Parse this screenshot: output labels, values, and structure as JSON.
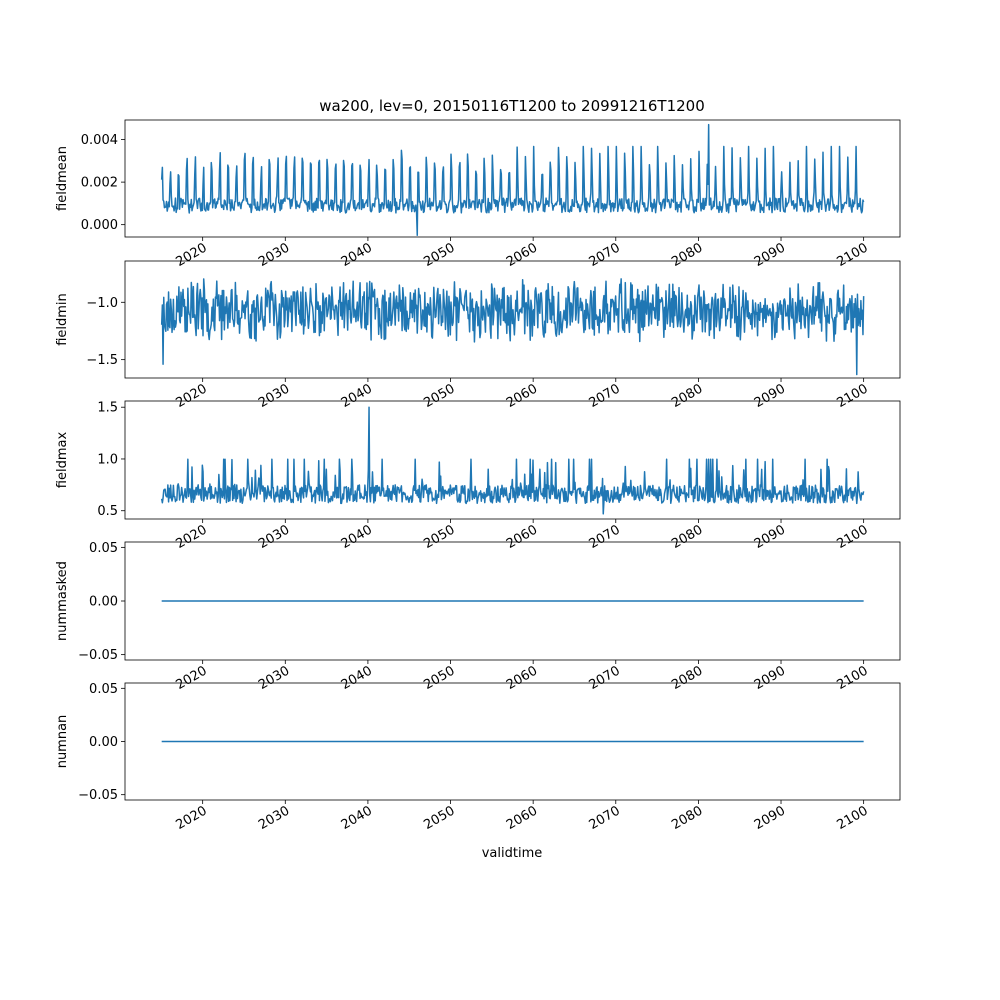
{
  "figure": {
    "title": "wa200, lev=0, 20150116T1200 to 20991216T1200",
    "xlabel": "validtime",
    "line_color": "#1f77b4"
  },
  "chart_data": [
    {
      "type": "line",
      "ylabel": "fieldmean",
      "xlim": [
        2010.6,
        2104.4
      ],
      "ylim": [
        -0.00058,
        0.00492
      ],
      "yticks": [
        0.0,
        0.002,
        0.004
      ],
      "ytick_labels": [
        "0.000",
        "0.002",
        "0.004"
      ],
      "xticks": [
        2020,
        2030,
        2040,
        2050,
        2060,
        2070,
        2080,
        2090,
        2100
      ],
      "xtick_labels": [
        "2020",
        "2030",
        "2040",
        "2050",
        "2060",
        "2070",
        "2080",
        "2090",
        "2100"
      ],
      "x_start": 2015.04,
      "x_end": 2100.0,
      "n_points": 1020,
      "seed": 11,
      "values_summary": {
        "typical_low": 0.0004,
        "typical_high": 0.0035,
        "min": -0.0005,
        "max": 0.0047
      },
      "series": [
        {
          "pattern": "seasonal_peaks",
          "base": 0.0009,
          "peak": 0.0026,
          "noise": 0.00035,
          "spike_x": 2081.2,
          "spike_value": 0.0047,
          "dip_x": 2046.0,
          "dip_value": -0.0005
        }
      ]
    },
    {
      "type": "line",
      "ylabel": "fieldmin",
      "xlim": [
        2010.6,
        2104.4
      ],
      "ylim": [
        -1.66,
        -0.64
      ],
      "yticks": [
        -1.5,
        -1.0
      ],
      "ytick_labels": [
        "−1.5",
        "−1.0"
      ],
      "xticks": [
        2020,
        2030,
        2040,
        2050,
        2060,
        2070,
        2080,
        2090,
        2100
      ],
      "xtick_labels": [
        "2020",
        "2030",
        "2040",
        "2050",
        "2060",
        "2070",
        "2080",
        "2090",
        "2100"
      ],
      "x_start": 2015.04,
      "x_end": 2100.0,
      "n_points": 1020,
      "seed": 23,
      "values_summary": {
        "typical_low": -1.35,
        "typical_high": -0.8,
        "min": -1.63,
        "max": -0.72
      },
      "series": [
        {
          "pattern": "noise",
          "base": -1.07,
          "noise": 0.2,
          "spike_x": 2099.2,
          "spike_value": -1.63,
          "dip_x": 2015.2,
          "dip_value": -1.54
        }
      ]
    },
    {
      "type": "line",
      "ylabel": "fieldmax",
      "xlim": [
        2010.6,
        2104.4
      ],
      "ylim": [
        0.42,
        1.56
      ],
      "yticks": [
        0.5,
        1.0,
        1.5
      ],
      "ytick_labels": [
        "0.5",
        "1.0",
        "1.5"
      ],
      "xticks": [
        2020,
        2030,
        2040,
        2050,
        2060,
        2070,
        2080,
        2090,
        2100
      ],
      "xtick_labels": [
        "2020",
        "2030",
        "2040",
        "2050",
        "2060",
        "2070",
        "2080",
        "2090",
        "2100"
      ],
      "x_start": 2015.04,
      "x_end": 2100.0,
      "n_points": 1020,
      "seed": 37,
      "values_summary": {
        "typical_low": 0.55,
        "typical_high": 0.95,
        "min": 0.47,
        "max": 1.5
      },
      "series": [
        {
          "pattern": "upward_spikes",
          "base": 0.66,
          "noise": 0.09,
          "spike_x": 2040.1,
          "spike_value": 1.5,
          "dip_x": 2068.5,
          "dip_value": 0.47
        }
      ]
    },
    {
      "type": "line",
      "ylabel": "nummasked",
      "xlim": [
        2010.6,
        2104.4
      ],
      "ylim": [
        -0.055,
        0.055
      ],
      "yticks": [
        -0.05,
        0.0,
        0.05
      ],
      "ytick_labels": [
        "−0.05",
        "0.00",
        "0.05"
      ],
      "xticks": [
        2020,
        2030,
        2040,
        2050,
        2060,
        2070,
        2080,
        2090,
        2100
      ],
      "xtick_labels": [
        "2020",
        "2030",
        "2040",
        "2050",
        "2060",
        "2070",
        "2080",
        "2090",
        "2100"
      ],
      "x_start": 2015.04,
      "x_end": 2100.0,
      "series": [
        {
          "pattern": "constant",
          "value": 0.0
        }
      ]
    },
    {
      "type": "line",
      "ylabel": "numnan",
      "xlim": [
        2010.6,
        2104.4
      ],
      "ylim": [
        -0.055,
        0.055
      ],
      "yticks": [
        -0.05,
        0.0,
        0.05
      ],
      "ytick_labels": [
        "−0.05",
        "0.00",
        "0.05"
      ],
      "xticks": [
        2020,
        2030,
        2040,
        2050,
        2060,
        2070,
        2080,
        2090,
        2100
      ],
      "xtick_labels": [
        "2020",
        "2030",
        "2040",
        "2050",
        "2060",
        "2070",
        "2080",
        "2090",
        "2100"
      ],
      "x_start": 2015.04,
      "x_end": 2100.0,
      "series": [
        {
          "pattern": "constant",
          "value": 0.0
        }
      ]
    }
  ]
}
